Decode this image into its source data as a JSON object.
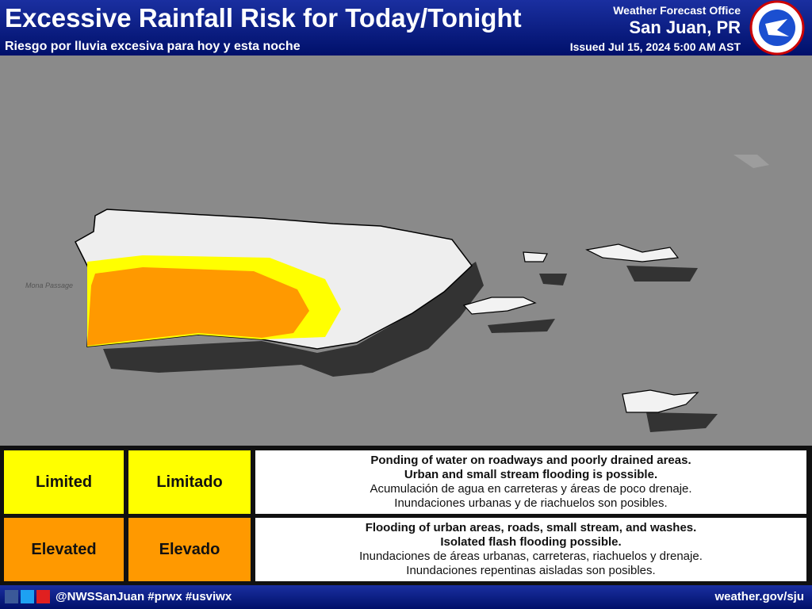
{
  "header": {
    "title": "Excessive Rainfall Risk for Today/Tonight",
    "subtitle": "Riesgo por lluvia excesiva para hoy y esta noche"
  },
  "office": {
    "label": "Weather Forecast Office",
    "name": "San Juan, PR",
    "issued": "Issued Jul 15, 2024 5:00 AM AST"
  },
  "map": {
    "labels": [
      "Mona Passage"
    ]
  },
  "legend": {
    "rows": [
      {
        "level_en": "Limited",
        "level_es": "Limitado",
        "description": [
          "Ponding of water on roadways and poorly drained areas.",
          "Urban and small stream flooding is possible.",
          "Acumulación de agua en carreteras y áreas de poco drenaje.",
          "Inundaciones urbanas y de riachuelos son posibles."
        ]
      },
      {
        "level_en": "Elevated",
        "level_es": "Elevado",
        "description": [
          "Flooding of urban areas, roads, small stream, and washes.",
          "Isolated flash flooding possible.",
          "Inundaciones de áreas urbanas, carreteras, riachuelos y drenaje.",
          "Inundaciones repentinas aisladas son posibles."
        ]
      }
    ]
  },
  "footer": {
    "social": "@NWSSanJuan #prwx #usviwx",
    "url": "weather.gov/sju"
  }
}
